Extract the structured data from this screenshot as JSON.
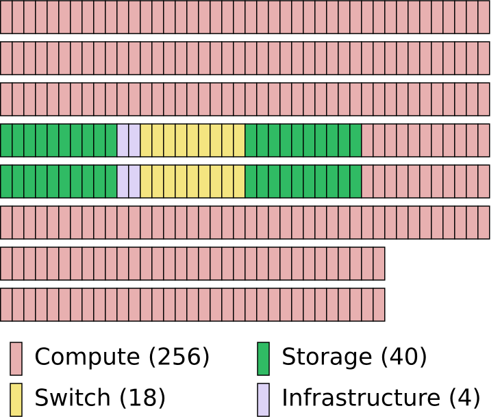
{
  "legend": [
    {
      "label": "Compute (256)",
      "color": "#e8b0b0"
    },
    {
      "label": "Storage (40)",
      "color": "#30bb64"
    },
    {
      "label": "Switch (18)",
      "color": "#f4e580"
    },
    {
      "label": "Infrastructure (4)",
      "color": "#ddd3f6"
    }
  ],
  "rows": [
    [
      {
        "kind": 0,
        "count": 42
      }
    ],
    [
      {
        "kind": 0,
        "count": 42
      }
    ],
    [
      {
        "kind": 0,
        "count": 42
      }
    ],
    [
      {
        "kind": 1,
        "count": 10
      },
      {
        "kind": 3,
        "count": 2
      },
      {
        "kind": 2,
        "count": 9
      },
      {
        "kind": 1,
        "count": 10
      },
      {
        "kind": 0,
        "count": 11
      }
    ],
    [
      {
        "kind": 1,
        "count": 10
      },
      {
        "kind": 3,
        "count": 2
      },
      {
        "kind": 2,
        "count": 9
      },
      {
        "kind": 1,
        "count": 10
      },
      {
        "kind": 0,
        "count": 11
      }
    ],
    [
      {
        "kind": 0,
        "count": 42
      }
    ],
    [
      {
        "kind": 0,
        "count": 33
      }
    ],
    [
      {
        "kind": 0,
        "count": 33
      }
    ]
  ]
}
